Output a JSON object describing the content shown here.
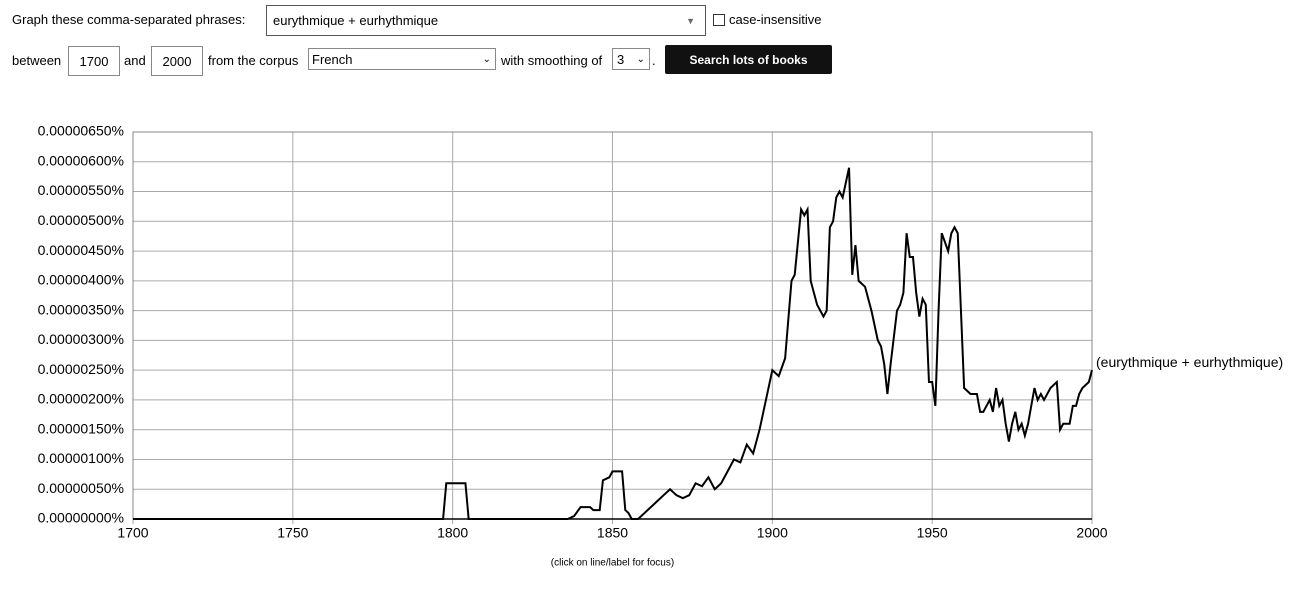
{
  "form": {
    "phrases_label": "Graph these comma-separated phrases:",
    "phrases": "eurythmique + eurhythmique",
    "case_label": "case-insensitive",
    "between": "between",
    "start_year": "1700",
    "and": "and",
    "end_year": "2000",
    "corpus_label": "from the corpus",
    "corpus": "French",
    "smoothing_label": "with smoothing of",
    "smoothing": "3",
    "period": ".",
    "button": "Search lots of books"
  },
  "chart_data": {
    "type": "line",
    "note": "(click on line/label for focus)",
    "x": [
      1700,
      1797,
      1798,
      1804,
      1805,
      1836,
      1838,
      1840,
      1843,
      1844,
      1846,
      1847,
      1849,
      1850,
      1853,
      1854,
      1855,
      1856,
      1858,
      1860,
      1862,
      1864,
      1866,
      1868,
      1870,
      1872,
      1874,
      1876,
      1878,
      1880,
      1882,
      1884,
      1886,
      1888,
      1890,
      1892,
      1894,
      1896,
      1898,
      1900,
      1902,
      1904,
      1906,
      1907,
      1909,
      1910,
      1911,
      1912,
      1914,
      1915,
      1916,
      1917,
      1918,
      1919,
      1920,
      1921,
      1922,
      1924,
      1925,
      1926,
      1927,
      1929,
      1931,
      1933,
      1934,
      1935,
      1936,
      1937,
      1939,
      1940,
      1941,
      1942,
      1943,
      1944,
      1945,
      1946,
      1947,
      1948,
      1949,
      1950,
      1951,
      1952,
      1953,
      1955,
      1956,
      1957,
      1958,
      1959,
      1960,
      1962,
      1964,
      1965,
      1966,
      1968,
      1969,
      1970,
      1971,
      1972,
      1973,
      1974,
      1975,
      1976,
      1977,
      1978,
      1979,
      1980,
      1981,
      1982,
      1983,
      1984,
      1985,
      1987,
      1989,
      1990,
      1991,
      1993,
      1994,
      1995,
      1996,
      1997,
      1999,
      2000
    ],
    "series": [
      {
        "name": "(eurythmique + eurhythmique)",
        "color": "#000000",
        "values": [
          0,
          0,
          6e-07,
          6e-07,
          0,
          0,
          5e-08,
          2e-07,
          2e-07,
          1.5e-07,
          1.5e-07,
          6.5e-07,
          7e-07,
          8e-07,
          8e-07,
          1.5e-07,
          1e-07,
          0,
          0,
          1e-07,
          2e-07,
          3e-07,
          4e-07,
          5e-07,
          4e-07,
          3.5e-07,
          4e-07,
          6e-07,
          5.5e-07,
          7e-07,
          5e-07,
          6e-07,
          8e-07,
          1e-06,
          9.5e-07,
          1.25e-06,
          1.1e-06,
          1.5e-06,
          2e-06,
          2.5e-06,
          2.4e-06,
          2.7e-06,
          4e-06,
          4.1e-06,
          5.2e-06,
          5.1e-06,
          5.2e-06,
          4e-06,
          3.6e-06,
          3.5e-06,
          3.4e-06,
          3.5e-06,
          4.9e-06,
          5e-06,
          5.4e-06,
          5.5e-06,
          5.4e-06,
          5.9e-06,
          4.1e-06,
          4.6e-06,
          4e-06,
          3.9e-06,
          3.5e-06,
          3e-06,
          2.9e-06,
          2.6e-06,
          2.1e-06,
          2.6e-06,
          3.5e-06,
          3.6e-06,
          3.8e-06,
          4.8e-06,
          4.4e-06,
          4.4e-06,
          3.8e-06,
          3.4e-06,
          3.7e-06,
          3.6e-06,
          2.3e-06,
          2.3e-06,
          1.9e-06,
          3.5e-06,
          4.8e-06,
          4.5e-06,
          4.8e-06,
          4.9e-06,
          4.8e-06,
          3.5e-06,
          2.2e-06,
          2.1e-06,
          2.1e-06,
          1.8e-06,
          1.8e-06,
          2e-06,
          1.8e-06,
          2.2e-06,
          1.9e-06,
          2e-06,
          1.6e-06,
          1.3e-06,
          1.6e-06,
          1.8e-06,
          1.5e-06,
          1.6e-06,
          1.4e-06,
          1.6e-06,
          1.9e-06,
          2.2e-06,
          2e-06,
          2.1e-06,
          2e-06,
          2.2e-06,
          2.3e-06,
          1.5e-06,
          1.6e-06,
          1.6e-06,
          1.9e-06,
          1.9e-06,
          2.1e-06,
          2.2e-06,
          2.3e-06,
          2.5e-06
        ]
      }
    ],
    "xlim": [
      1700,
      2000
    ],
    "xticks": [
      1700,
      1750,
      1800,
      1850,
      1900,
      1950,
      2000
    ],
    "ylim": [
      0,
      6.5e-06
    ],
    "yticks": [
      {
        "value": 0,
        "label": "0.00000000%"
      },
      {
        "value": 5e-07,
        "label": "0.00000050%"
      },
      {
        "value": 1e-06,
        "label": "0.00000100%"
      },
      {
        "value": 1.5e-06,
        "label": "0.00000150%"
      },
      {
        "value": 2e-06,
        "label": "0.00000200%"
      },
      {
        "value": 2.5e-06,
        "label": "0.00000250%"
      },
      {
        "value": 3e-06,
        "label": "0.00000300%"
      },
      {
        "value": 3.5e-06,
        "label": "0.00000350%"
      },
      {
        "value": 4e-06,
        "label": "0.00000400%"
      },
      {
        "value": 4.5e-06,
        "label": "0.00000450%"
      },
      {
        "value": 5e-06,
        "label": "0.00000500%"
      },
      {
        "value": 5.5e-06,
        "label": "0.00000550%"
      },
      {
        "value": 6e-06,
        "label": "0.00000600%"
      },
      {
        "value": 6.5e-06,
        "label": "0.00000650%"
      }
    ],
    "grid": true
  }
}
